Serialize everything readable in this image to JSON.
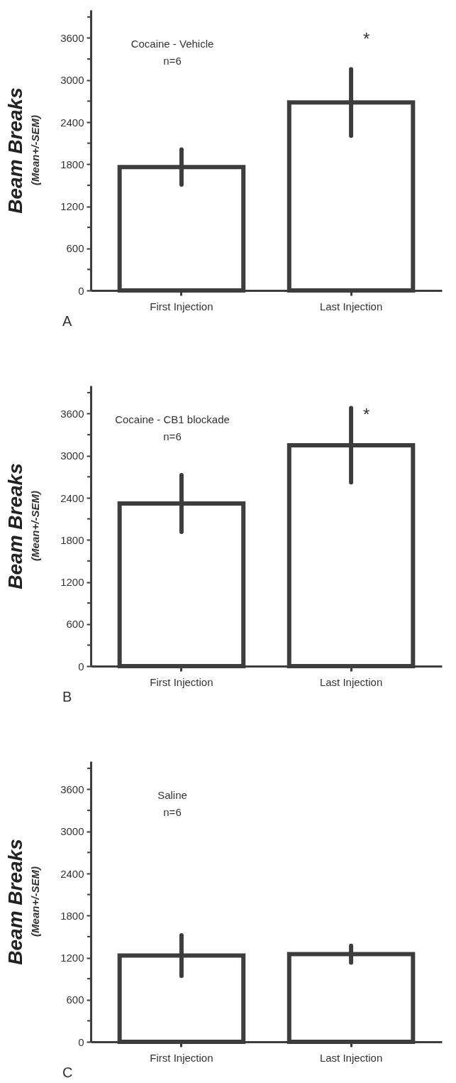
{
  "chart_data": [
    {
      "type": "bar",
      "ylabel": "Beam Breaks",
      "categories": [
        "First Injection",
        "Last Injection"
      ],
      "series": [
        {
          "color": "#3d3d3d",
          "values": [
            1760,
            2680
          ],
          "errors": [
            250,
            475
          ]
        }
      ],
      "ylim": [
        0,
        4000
      ],
      "yticks": [
        0,
        {
          "value": 300,
          "label": null
        },
        600,
        {
          "value": 900,
          "label": null
        },
        1200,
        {
          "value": 1500,
          "label": null
        },
        1800,
        {
          "value": 2100,
          "label": null
        },
        2400,
        {
          "value": 2700,
          "label": null
        },
        3000,
        {
          "value": 3300,
          "label": null
        },
        3600,
        {
          "value": 3900,
          "label": null
        }
      ],
      "grid": false,
      "annotations": [
        "Cocaine - Vehicle",
        "n=6",
        "(Mean+/-SEM)",
        "A",
        "*"
      ]
    },
    {
      "type": "bar",
      "ylabel": "Beam Breaks",
      "categories": [
        "First Injection",
        "Last Injection"
      ],
      "series": [
        {
          "color": "#3d3d3d",
          "values": [
            2320,
            3150
          ],
          "errors": [
            405,
            530
          ]
        }
      ],
      "ylim": [
        0,
        4000
      ],
      "yticks": [
        0,
        {
          "value": 300,
          "label": null
        },
        600,
        {
          "value": 900,
          "label": null
        },
        1200,
        {
          "value": 1500,
          "label": null
        },
        1800,
        {
          "value": 2100,
          "label": null
        },
        2400,
        {
          "value": 2700,
          "label": null
        },
        3000,
        {
          "value": 3300,
          "label": null
        },
        3600,
        {
          "value": 3900,
          "label": null
        }
      ],
      "grid": false,
      "annotations": [
        "Cocaine - CB1 blockade",
        "n=6",
        "(Mean+/-SEM)",
        "B",
        "*"
      ]
    },
    {
      "type": "bar",
      "ylabel": "Beam Breaks",
      "categories": [
        "First Injection",
        "Last Injection"
      ],
      "series": [
        {
          "color": "#3d3d3d",
          "values": [
            1230,
            1250
          ],
          "errors": [
            290,
            120
          ]
        }
      ],
      "ylim": [
        0,
        4000
      ],
      "yticks": [
        0,
        {
          "value": 300,
          "label": null
        },
        600,
        {
          "value": 900,
          "label": null
        },
        1200,
        {
          "value": 1500,
          "label": null
        },
        1800,
        {
          "value": 2100,
          "label": null
        },
        2400,
        {
          "value": 2700,
          "label": null
        },
        3000,
        {
          "value": 3300,
          "label": null
        },
        3600,
        {
          "value": 3900,
          "label": null
        }
      ],
      "grid": false,
      "annotations": [
        "Saline",
        "n=6",
        "(Mean+/-SEM)",
        "C"
      ]
    }
  ]
}
